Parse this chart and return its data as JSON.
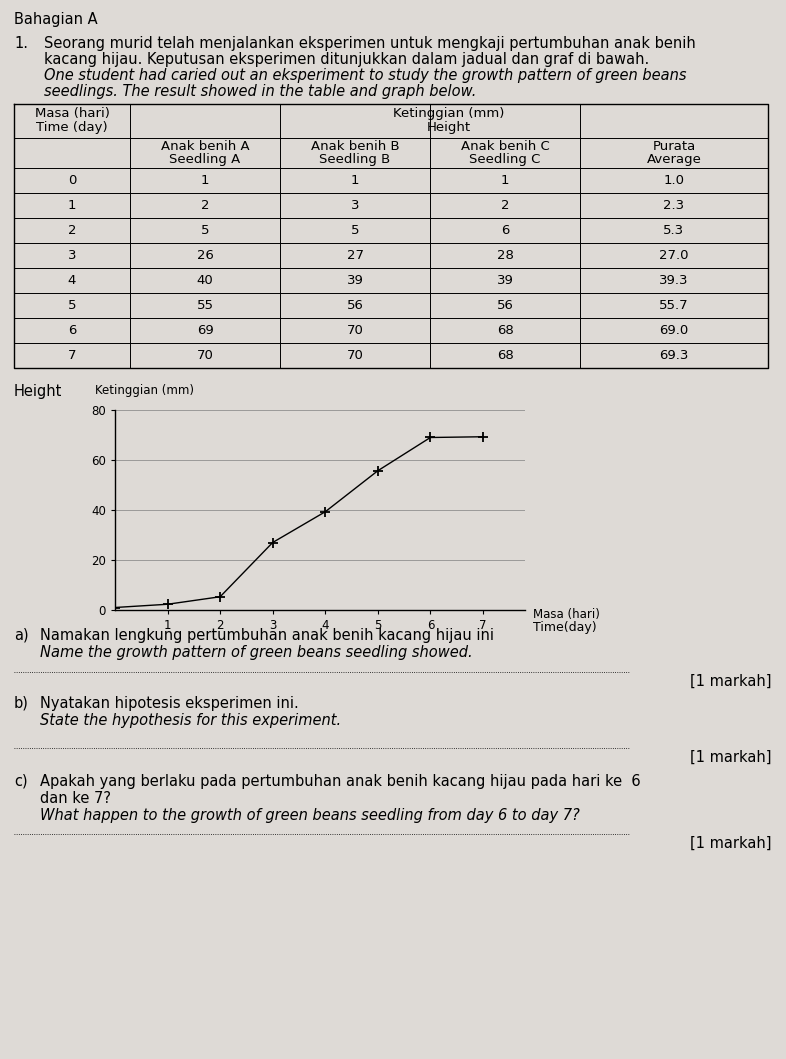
{
  "title_section": "Bahagian A",
  "question_number": "1.",
  "question_text_malay": "Seorang murid telah menjalankan eksperimen untuk mengkaji pertumbuhan anak benih\nkacang hijau. Keputusan eksperimen ditunjukkan dalam jadual dan graf di bawah.",
  "question_text_english": "One student had caried out an eksperiment to study the growth pattern of green beans\nseedlings. The result showed in the table and graph below.",
  "table_header_col1_line1": "Masa (hari)",
  "table_header_col1_line2": "Time (day)",
  "table_header_group": "Ketinggian (mm)",
  "table_header_group_english": "Height",
  "col2_line1": "Anak benih A",
  "col2_line2": "Seedling A",
  "col3_line1": "Anak benih B",
  "col3_line2": "Seedling B",
  "col4_line1": "Anak benih C",
  "col4_line2": "Seedling C",
  "col5_line1": "Purata",
  "col5_line2": "Average",
  "days": [
    0,
    1,
    2,
    3,
    4,
    5,
    6,
    7
  ],
  "seedling_a": [
    1,
    2,
    5,
    26,
    40,
    55,
    69,
    70
  ],
  "seedling_b": [
    1,
    3,
    5,
    27,
    39,
    56,
    70,
    70
  ],
  "seedling_c": [
    1,
    2,
    6,
    28,
    39,
    56,
    68,
    68
  ],
  "average": [
    1.0,
    2.3,
    5.3,
    27.0,
    39.3,
    55.7,
    69.0,
    69.3
  ],
  "graph_ylim": [
    0,
    80
  ],
  "graph_yticks": [
    0,
    20,
    40,
    60,
    80
  ],
  "graph_xticks": [
    1,
    2,
    3,
    4,
    5,
    6,
    7
  ],
  "markah_text": "[1 markah]",
  "bg_color": "#dedad6",
  "line_color": "#000000",
  "font_size_body": 10.5,
  "font_size_small": 8.5,
  "font_size_table": 9.5
}
